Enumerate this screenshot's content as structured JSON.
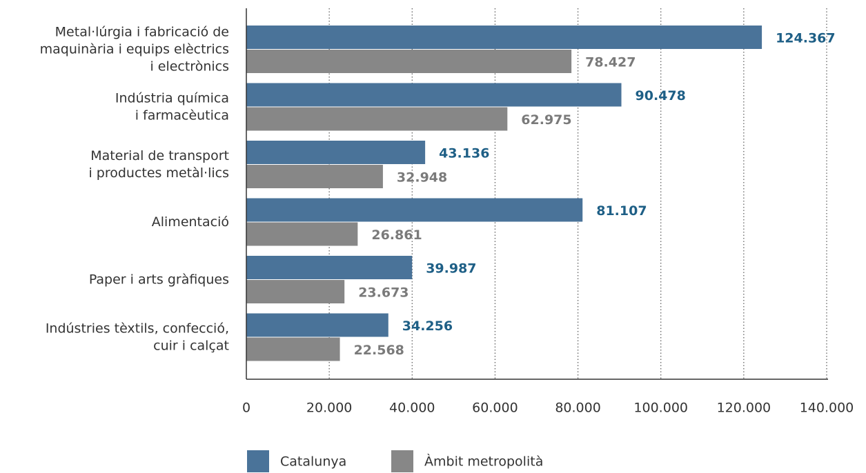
{
  "chart_data": {
    "type": "hbar",
    "categories": [
      [
        "Metal·lúrgia i fabricació de",
        "maquinària i equips elèctrics",
        "i electrònics"
      ],
      [
        "Indústria química",
        "i farmacèutica"
      ],
      [
        "Material de transport",
        "i productes metàl·lics"
      ],
      [
        "Alimentació"
      ],
      [
        "Paper i arts gràfiques"
      ],
      [
        "Indústries tèxtils, confecció,",
        "cuir i calçat"
      ]
    ],
    "series": [
      {
        "name": "Catalunya",
        "color": "#4a7399",
        "label_color": "#1e5f86",
        "values": [
          124367,
          90478,
          43136,
          81107,
          39987,
          34256
        ],
        "value_labels": [
          "124.367",
          "90.478",
          "43.136",
          "81.107",
          "39.987",
          "34.256"
        ]
      },
      {
        "name": "Àmbit metropolità",
        "color": "#878787",
        "label_color": "#7a7a7a",
        "values": [
          78427,
          62975,
          32948,
          26861,
          23673,
          22568
        ],
        "value_labels": [
          "78.427",
          "62.975",
          "32.948",
          "26.861",
          "23.673",
          "22.568"
        ]
      }
    ],
    "xlim": [
      0,
      140000
    ],
    "xticks": [
      0,
      {
        "value": 20000,
        "label": "20.000"
      },
      {
        "value": 40000,
        "label": "40.000"
      },
      {
        "value": 60000,
        "label": "60.000"
      },
      {
        "value": 80000,
        "label": "80.000"
      },
      {
        "value": 100000,
        "label": "100.000"
      },
      {
        "value": 120000,
        "label": "120.000"
      },
      {
        "value": 140000,
        "label": "140.000"
      }
    ],
    "grid": true,
    "legend": "bottom"
  }
}
